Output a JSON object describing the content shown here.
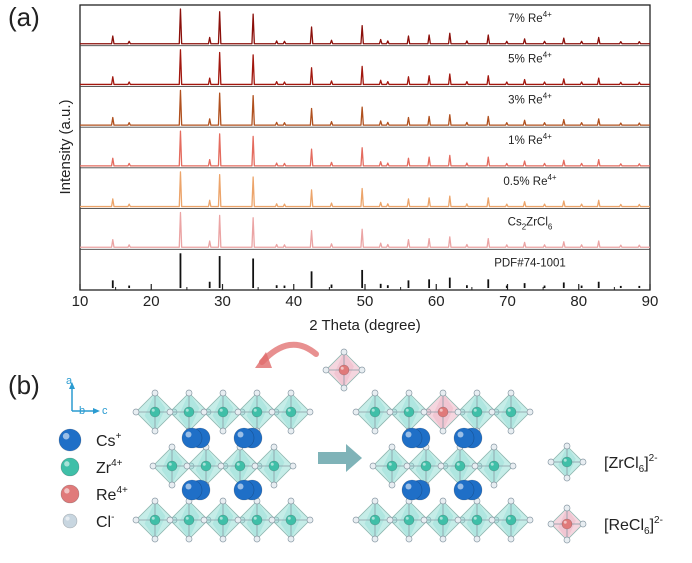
{
  "panel_a_label": "(a)",
  "panel_b_label": "(b)",
  "chart_data": {
    "type": "line",
    "xlabel": "2 Theta (degree)",
    "ylabel": "Intensity (a.u.)",
    "xlim": [
      10,
      90
    ],
    "xticks": [
      10,
      20,
      30,
      40,
      50,
      60,
      70,
      80,
      90
    ],
    "grid": false,
    "series": [
      {
        "name": "7% Re4+",
        "label_main": "7% Re",
        "label_sup": "4+",
        "color": "#8b0f0a"
      },
      {
        "name": "5% Re4+",
        "label_main": "5% Re",
        "label_sup": "4+",
        "color": "#a2170e"
      },
      {
        "name": "3% Re4+",
        "label_main": "3% Re",
        "label_sup": "4+",
        "color": "#b0501e"
      },
      {
        "name": "1% Re4+",
        "label_main": "1% Re",
        "label_sup": "4+",
        "color": "#e46b5e"
      },
      {
        "name": "0.5% Re4+",
        "label_main": "0.5% Re",
        "label_sup": "4+",
        "color": "#eca46a"
      },
      {
        "name": "Cs2ZrCl6",
        "label_main": "Cs",
        "label_sub": "2",
        "label_main2": "ZrCl",
        "label_sub2": "6",
        "color": "#eba4a4"
      },
      {
        "name": "PDF#74-1001",
        "label_main": "PDF#74-1001",
        "color": "#111111",
        "style": "sticks"
      }
    ],
    "peaks": [
      {
        "x": 14.6,
        "y": 0.22
      },
      {
        "x": 16.9,
        "y": 0.07
      },
      {
        "x": 24.1,
        "y": 1.0
      },
      {
        "x": 28.2,
        "y": 0.18
      },
      {
        "x": 29.6,
        "y": 0.92
      },
      {
        "x": 34.3,
        "y": 0.85
      },
      {
        "x": 37.6,
        "y": 0.08
      },
      {
        "x": 38.7,
        "y": 0.07
      },
      {
        "x": 42.5,
        "y": 0.48
      },
      {
        "x": 45.3,
        "y": 0.1
      },
      {
        "x": 49.6,
        "y": 0.52
      },
      {
        "x": 52.2,
        "y": 0.12
      },
      {
        "x": 53.2,
        "y": 0.08
      },
      {
        "x": 56.1,
        "y": 0.22
      },
      {
        "x": 59.0,
        "y": 0.25
      },
      {
        "x": 61.9,
        "y": 0.3
      },
      {
        "x": 64.3,
        "y": 0.08
      },
      {
        "x": 67.3,
        "y": 0.25
      },
      {
        "x": 69.9,
        "y": 0.07
      },
      {
        "x": 72.4,
        "y": 0.14
      },
      {
        "x": 75.2,
        "y": 0.07
      },
      {
        "x": 77.9,
        "y": 0.16
      },
      {
        "x": 80.4,
        "y": 0.07
      },
      {
        "x": 82.8,
        "y": 0.18
      },
      {
        "x": 85.9,
        "y": 0.06
      },
      {
        "x": 88.5,
        "y": 0.06
      }
    ]
  },
  "schematic": {
    "axes_labels": {
      "a": "a",
      "b": "b",
      "c": "c"
    },
    "legend": [
      {
        "name": "Cs+",
        "main": "Cs",
        "sup": "+",
        "color": "#1f6fc7"
      },
      {
        "name": "Zr4+",
        "main": "Zr",
        "sup": "4+",
        "color": "#3fbfa8"
      },
      {
        "name": "Re4+",
        "main": "Re",
        "sup": "4+",
        "color": "#e07a7a"
      },
      {
        "name": "Cl-",
        "main": "Cl",
        "sup": "-",
        "color": "#c8d6e0"
      }
    ],
    "octahedra_legend": [
      {
        "name": "[ZrCl6]2-",
        "main": "[ZrCl",
        "sub": "6",
        "end": "]",
        "sup": "2-",
        "color": "#7fd6cc"
      },
      {
        "name": "[ReCl6]2-",
        "main": "[ReCl",
        "sub": "6",
        "end": "]",
        "sup": "2-",
        "color": "#e9a3b7"
      }
    ]
  }
}
